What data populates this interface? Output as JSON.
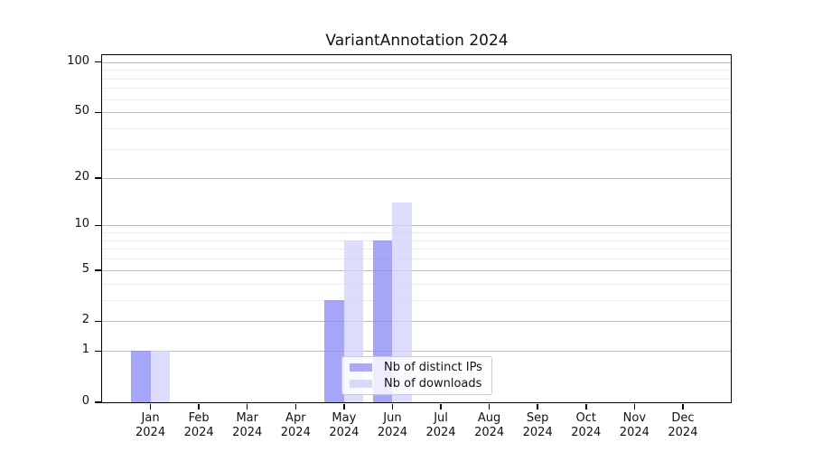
{
  "title": "VariantAnnotation 2024",
  "colors": {
    "bar_distinct_ips": "rgba(136,136,246,0.75)",
    "bar_downloads": "rgba(208,208,252,0.75)",
    "swatch_distinct_ips": "#a9a9f6",
    "swatch_downloads": "#d9d9fb",
    "grid_major": "#bcbcbc",
    "grid_minor": "#ececec",
    "axis": "#000000",
    "text": "#111111",
    "legend_border": "#cccccc",
    "legend_bg": "rgba(255,255,255,0.8)"
  },
  "legend": {
    "items": [
      {
        "label": "Nb of distinct IPs",
        "swatch_color": "#a9a9f6"
      },
      {
        "label": "Nb of downloads",
        "swatch_color": "#d9d9fb"
      }
    ],
    "position": "bottom-center"
  },
  "chart_data": {
    "type": "bar",
    "title": "VariantAnnotation 2024",
    "categories": [
      {
        "month": "Jan",
        "year": "2024"
      },
      {
        "month": "Feb",
        "year": "2024"
      },
      {
        "month": "Mar",
        "year": "2024"
      },
      {
        "month": "Apr",
        "year": "2024"
      },
      {
        "month": "May",
        "year": "2024"
      },
      {
        "month": "Jun",
        "year": "2024"
      },
      {
        "month": "Jul",
        "year": "2024"
      },
      {
        "month": "Aug",
        "year": "2024"
      },
      {
        "month": "Sep",
        "year": "2024"
      },
      {
        "month": "Oct",
        "year": "2024"
      },
      {
        "month": "Nov",
        "year": "2024"
      },
      {
        "month": "Dec",
        "year": "2024"
      }
    ],
    "series": [
      {
        "name": "Nb of distinct IPs",
        "color": "rgba(136,136,246,0.75)",
        "values": [
          1,
          0,
          0,
          0,
          3,
          8,
          0,
          0,
          0,
          0,
          0,
          0
        ]
      },
      {
        "name": "Nb of downloads",
        "color": "rgba(208,208,252,0.75)",
        "values": [
          1,
          0,
          0,
          0,
          8,
          14,
          0,
          0,
          0,
          0,
          0,
          0
        ]
      }
    ],
    "xlabel": "",
    "ylabel": "",
    "yticks": [
      0,
      1,
      2,
      5,
      10,
      20,
      50,
      100
    ],
    "grid_minor_values": [
      3,
      4,
      6,
      7,
      8,
      9,
      30,
      40,
      60,
      70,
      80,
      90
    ],
    "scale": "log1p",
    "ylim": [
      0,
      110
    ],
    "grid": true,
    "legend_position": "bottom-center"
  }
}
